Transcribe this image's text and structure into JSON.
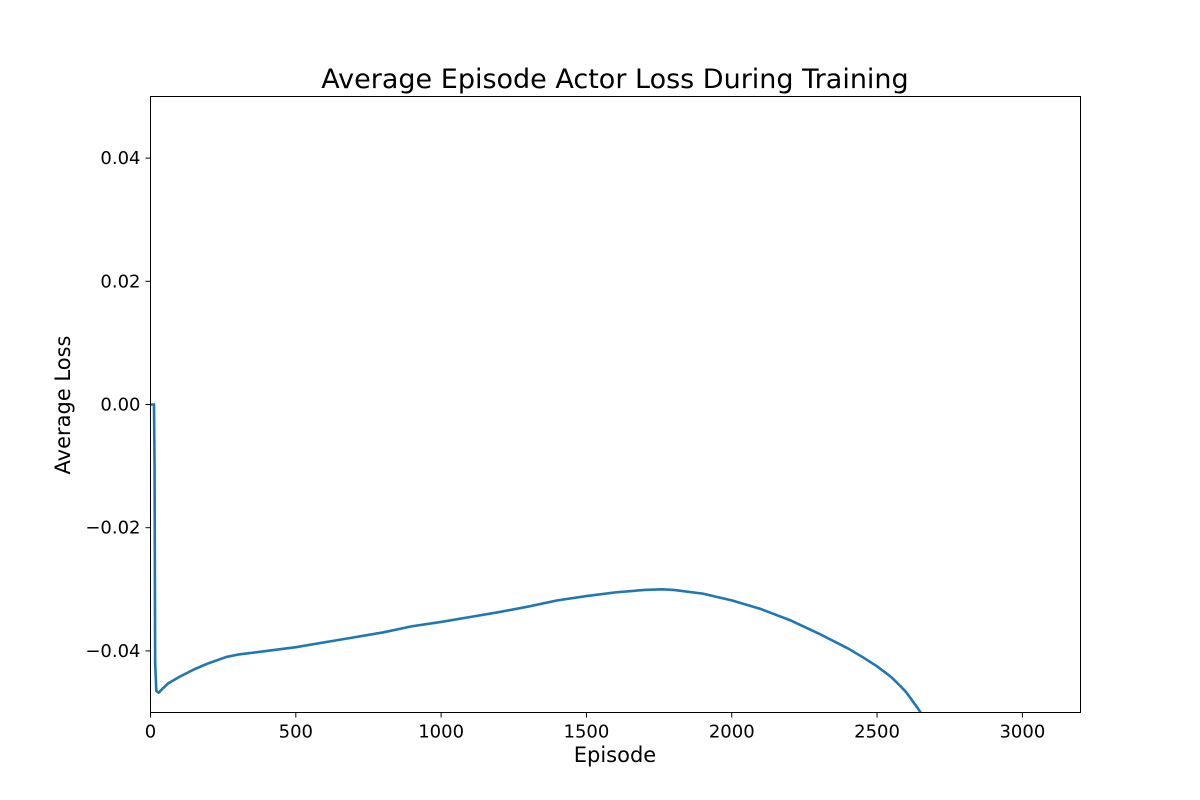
{
  "chart_data": {
    "type": "line",
    "title": "Average Episode Actor Loss During Training",
    "xlabel": "Episode",
    "ylabel": "Average Loss",
    "xlim": [
      0,
      3200
    ],
    "ylim": [
      -0.05,
      0.05
    ],
    "xticks": [
      0,
      500,
      1000,
      1500,
      2000,
      2500,
      3000
    ],
    "xtick_labels": [
      "0",
      "500",
      "1000",
      "1500",
      "2000",
      "2500",
      "3000"
    ],
    "yticks": [
      -0.04,
      -0.02,
      0.0,
      0.02,
      0.04
    ],
    "ytick_labels": [
      "−0.04",
      "−0.02",
      "0.00",
      "0.02",
      "0.04"
    ],
    "grid": false,
    "series": [
      {
        "color": "#1f77b4",
        "x": [
          0,
          10,
          12,
          14,
          16,
          20,
          28,
          40,
          60,
          100,
          150,
          200,
          260,
          300,
          400,
          500,
          600,
          700,
          800,
          900,
          1000,
          1100,
          1200,
          1300,
          1400,
          1500,
          1600,
          1700,
          1760,
          1800,
          1900,
          2000,
          2100,
          2200,
          2300,
          2400,
          2450,
          2500,
          2550,
          2580,
          2600,
          2620,
          2640,
          2650
        ],
        "y": [
          0.0,
          0.0,
          0.0,
          -0.01,
          -0.042,
          -0.0465,
          -0.0468,
          -0.0462,
          -0.0453,
          -0.0442,
          -0.043,
          -0.042,
          -0.041,
          -0.0406,
          -0.04,
          -0.0394,
          -0.0386,
          -0.0378,
          -0.037,
          -0.036,
          -0.0353,
          -0.0345,
          -0.0337,
          -0.0328,
          -0.0318,
          -0.0311,
          -0.0305,
          -0.0301,
          -0.03,
          -0.0301,
          -0.0307,
          -0.0318,
          -0.0332,
          -0.035,
          -0.0372,
          -0.0396,
          -0.041,
          -0.0425,
          -0.0443,
          -0.0457,
          -0.0467,
          -0.048,
          -0.0493,
          -0.05
        ]
      }
    ]
  }
}
